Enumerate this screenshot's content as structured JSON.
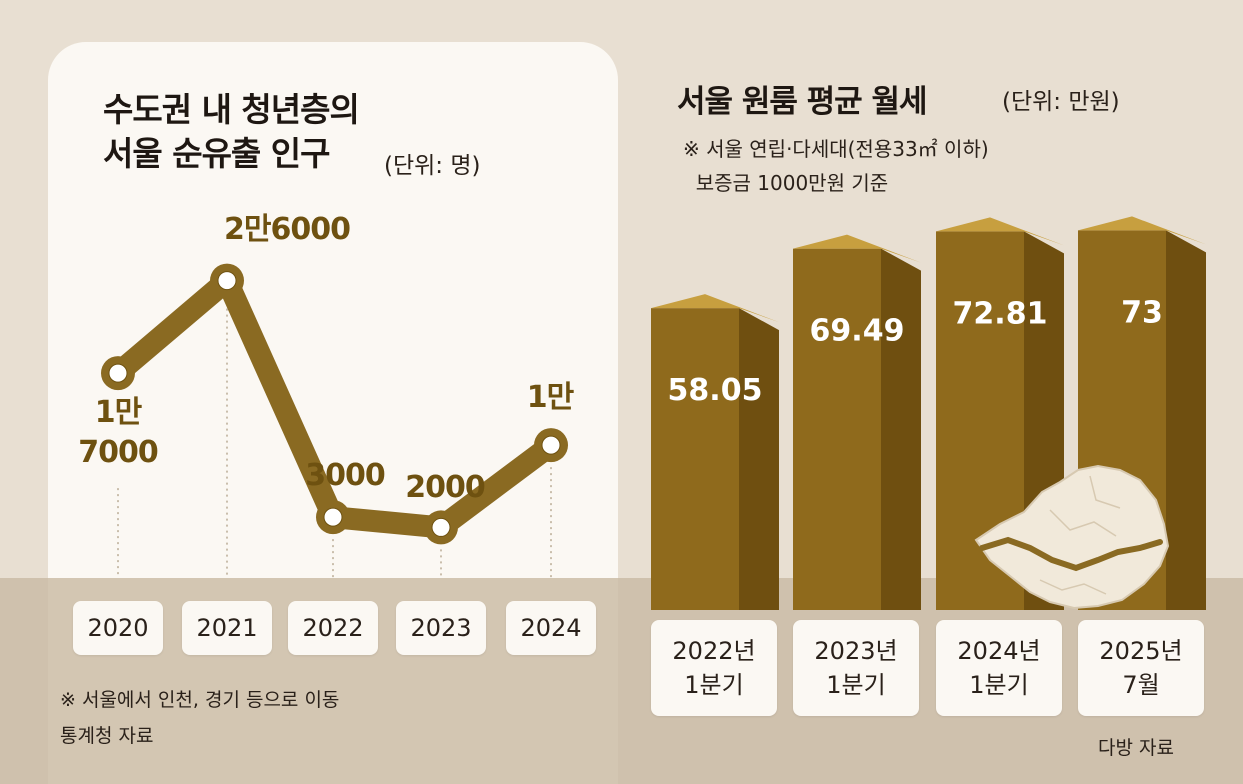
{
  "left_panel": {
    "title_line1": "수도권 내 청년층의",
    "title_line2": "서울 순유출 인구",
    "unit": "(단위: 명)",
    "note": "※ 서울에서 인천, 경기 등으로 이동",
    "source": "통계청 자료"
  },
  "right_panel": {
    "title": "서울 원룸 평균 월세",
    "unit": "(단위: 만원)",
    "note": "※ 서울 연립·다세대(전용33㎡ 이하)\n  보증금 1000만원 기준",
    "source": "다방 자료"
  },
  "colors": {
    "line": "#8a6a22",
    "line_dark": "#6e5110",
    "bar_front": "#8f6a1c",
    "bar_side": "#6f4f10",
    "bar_top": "#c79f3f",
    "card": "#fbf8f3",
    "background": "#e8dfd2",
    "ground": "#cfc1ad"
  },
  "chart_data": [
    {
      "type": "line",
      "title": "수도권 내 청년층의 서울 순유출 인구",
      "unit": "(단위: 명)",
      "x": [
        "2020",
        "2021",
        "2022",
        "2023",
        "2024"
      ],
      "values": [
        17000,
        26000,
        3000,
        2000,
        10000
      ],
      "labels": [
        [
          "1만",
          "7000"
        ],
        [
          "2만6000"
        ],
        [
          "3000"
        ],
        [
          "2000"
        ],
        [
          "1만"
        ]
      ],
      "ylim": [
        0,
        28000
      ],
      "grid": false
    },
    {
      "type": "bar",
      "title": "서울 원룸 평균 월세",
      "unit": "(단위: 만원)",
      "categories": [
        [
          "2022년",
          "1분기"
        ],
        [
          "2023년",
          "1분기"
        ],
        [
          "2024년",
          "1분기"
        ],
        [
          "2025년",
          "7월"
        ]
      ],
      "values": [
        58.05,
        69.49,
        72.81,
        73
      ],
      "labels": [
        "58.05",
        "69.49",
        "72.81",
        "73"
      ],
      "ylim": [
        0,
        80
      ],
      "grid": false
    }
  ]
}
